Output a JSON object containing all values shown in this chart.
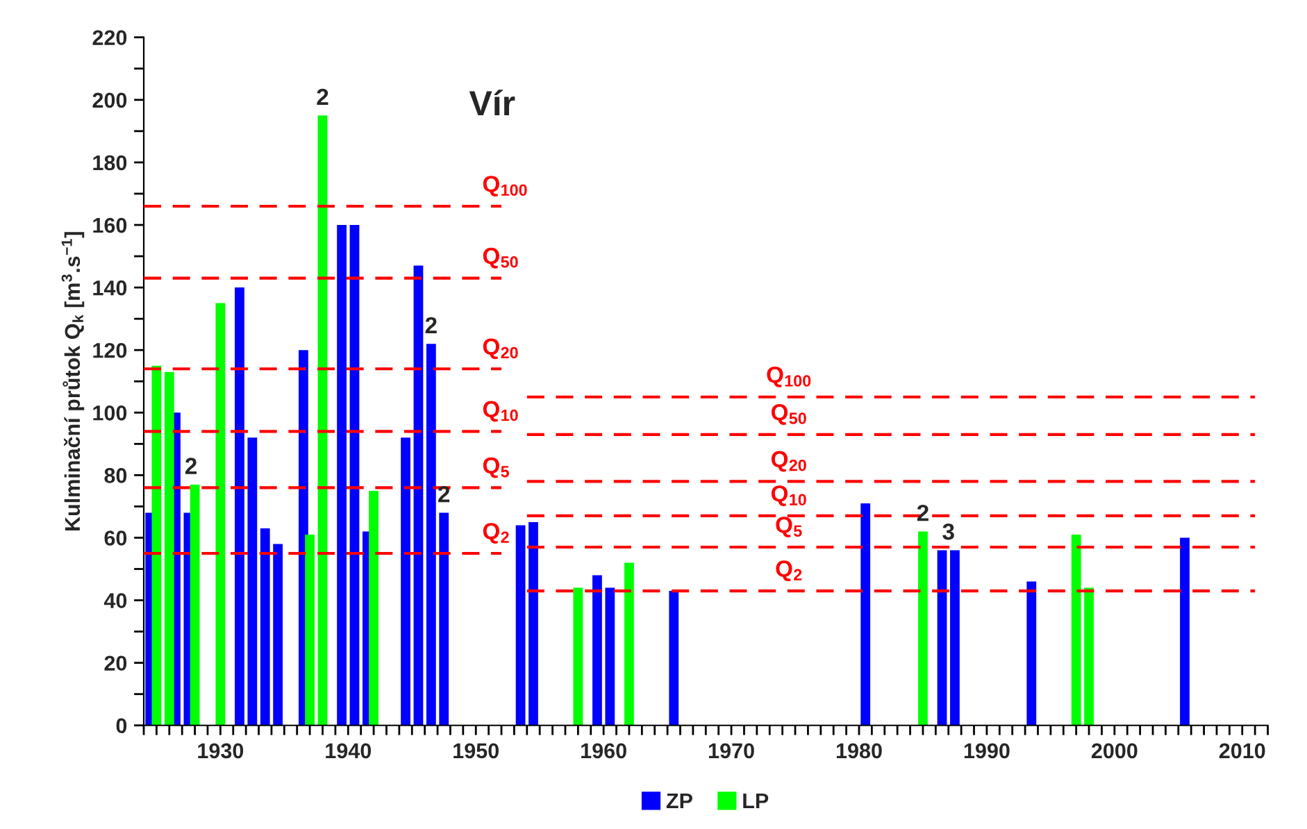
{
  "chart_data": {
    "type": "bar",
    "title": "Vír",
    "ylabel": "Kulminační průtok Q$_{k}$ [m$^{3}$.s$^{−1}$]",
    "xlim": [
      1924,
      2012
    ],
    "ylim": [
      0,
      220
    ],
    "xticks": [
      {
        "value": 1924,
        "label": null
      },
      {
        "value": 1925,
        "label": null
      },
      {
        "value": 1926,
        "label": null
      },
      {
        "value": 1927,
        "label": null
      },
      {
        "value": 1928,
        "label": null
      },
      {
        "value": 1929,
        "label": null
      },
      1930,
      {
        "value": 1931,
        "label": null
      },
      {
        "value": 1932,
        "label": null
      },
      {
        "value": 1933,
        "label": null
      },
      {
        "value": 1934,
        "label": null
      },
      {
        "value": 1935,
        "label": null
      },
      {
        "value": 1936,
        "label": null
      },
      {
        "value": 1937,
        "label": null
      },
      {
        "value": 1938,
        "label": null
      },
      {
        "value": 1939,
        "label": null
      },
      1940,
      {
        "value": 1941,
        "label": null
      },
      {
        "value": 1942,
        "label": null
      },
      {
        "value": 1943,
        "label": null
      },
      {
        "value": 1944,
        "label": null
      },
      {
        "value": 1945,
        "label": null
      },
      {
        "value": 1946,
        "label": null
      },
      {
        "value": 1947,
        "label": null
      },
      {
        "value": 1948,
        "label": null
      },
      {
        "value": 1949,
        "label": null
      },
      1950,
      {
        "value": 1951,
        "label": null
      },
      {
        "value": 1952,
        "label": null
      },
      {
        "value": 1953,
        "label": null
      },
      {
        "value": 1954,
        "label": null
      },
      {
        "value": 1955,
        "label": null
      },
      {
        "value": 1956,
        "label": null
      },
      {
        "value": 1957,
        "label": null
      },
      {
        "value": 1958,
        "label": null
      },
      {
        "value": 1959,
        "label": null
      },
      1960,
      {
        "value": 1961,
        "label": null
      },
      {
        "value": 1962,
        "label": null
      },
      {
        "value": 1963,
        "label": null
      },
      {
        "value": 1964,
        "label": null
      },
      {
        "value": 1965,
        "label": null
      },
      {
        "value": 1966,
        "label": null
      },
      {
        "value": 1967,
        "label": null
      },
      {
        "value": 1968,
        "label": null
      },
      {
        "value": 1969,
        "label": null
      },
      1970,
      {
        "value": 1971,
        "label": null
      },
      {
        "value": 1972,
        "label": null
      },
      {
        "value": 1973,
        "label": null
      },
      {
        "value": 1974,
        "label": null
      },
      {
        "value": 1975,
        "label": null
      },
      {
        "value": 1976,
        "label": null
      },
      {
        "value": 1977,
        "label": null
      },
      {
        "value": 1978,
        "label": null
      },
      {
        "value": 1979,
        "label": null
      },
      1980,
      {
        "value": 1981,
        "label": null
      },
      {
        "value": 1982,
        "label": null
      },
      {
        "value": 1983,
        "label": null
      },
      {
        "value": 1984,
        "label": null
      },
      {
        "value": 1985,
        "label": null
      },
      {
        "value": 1986,
        "label": null
      },
      {
        "value": 1987,
        "label": null
      },
      {
        "value": 1988,
        "label": null
      },
      {
        "value": 1989,
        "label": null
      },
      1990,
      {
        "value": 1991,
        "label": null
      },
      {
        "value": 1992,
        "label": null
      },
      {
        "value": 1993,
        "label": null
      },
      {
        "value": 1994,
        "label": null
      },
      {
        "value": 1995,
        "label": null
      },
      {
        "value": 1996,
        "label": null
      },
      {
        "value": 1997,
        "label": null
      },
      {
        "value": 1998,
        "label": null
      },
      {
        "value": 1999,
        "label": null
      },
      2000,
      {
        "value": 2001,
        "label": null
      },
      {
        "value": 2002,
        "label": null
      },
      {
        "value": 2003,
        "label": null
      },
      {
        "value": 2004,
        "label": null
      },
      {
        "value": 2005,
        "label": null
      },
      {
        "value": 2006,
        "label": null
      },
      {
        "value": 2007,
        "label": null
      },
      {
        "value": 2008,
        "label": null
      },
      {
        "value": 2009,
        "label": null
      },
      2010,
      {
        "value": 2011,
        "label": null
      },
      {
        "value": 2012,
        "label": null
      }
    ],
    "yticks": [
      0,
      {
        "value": 10,
        "label": null
      },
      20,
      {
        "value": 30,
        "label": null
      },
      40,
      {
        "value": 50,
        "label": null
      },
      60,
      {
        "value": 70,
        "label": null
      },
      80,
      {
        "value": 90,
        "label": null
      },
      100,
      {
        "value": 110,
        "label": null
      },
      120,
      {
        "value": 130,
        "label": null
      },
      140,
      {
        "value": 150,
        "label": null
      },
      160,
      {
        "value": 170,
        "label": null
      },
      180,
      {
        "value": 190,
        "label": null
      },
      200,
      {
        "value": 210,
        "label": null
      },
      220
    ],
    "grid": false,
    "legend": "bottom",
    "series": [
      {
        "name": "ZP",
        "color": "#0000ff",
        "x": [
          1924.5,
          1926.5,
          1927.5,
          1931.5,
          1932.5,
          1933.5,
          1934.5,
          1936.5,
          1939.5,
          1940.5,
          1941.5,
          1944.5,
          1945.5,
          1946.5,
          1947.5,
          1953.5,
          1954.5,
          1959.5,
          1960.5,
          1965.5,
          1980.5,
          1986.5,
          1987.5,
          1993.5,
          2005.5
        ],
        "values": [
          68,
          100,
          68,
          140,
          92,
          63,
          58,
          120,
          160,
          160,
          62,
          92,
          147,
          122,
          68,
          64,
          65,
          48,
          44,
          43,
          71,
          56,
          56,
          46,
          60
        ]
      },
      {
        "name": "LP",
        "color": "#00ff00",
        "x": [
          1925,
          1926,
          1928,
          1930,
          1937,
          1938,
          1942,
          1958,
          1962,
          1985,
          1997,
          1998
        ],
        "values": [
          115,
          113,
          77,
          135,
          61,
          195,
          75,
          44,
          52,
          62,
          61,
          44
        ]
      },
      {
        "name": "Q$_{100}$",
        "type": "line",
        "color": "#ff0000",
        "line_style": "dashed",
        "x": [
          1924,
          1952
        ],
        "values": [
          166,
          166
        ]
      },
      {
        "name": "Q$_{50}$",
        "type": "line",
        "color": "#ff0000",
        "line_style": "dashed",
        "x": [
          1924,
          1952
        ],
        "values": [
          143,
          143
        ]
      },
      {
        "name": "Q$_{20}$",
        "type": "line",
        "color": "#ff0000",
        "line_style": "dashed",
        "x": [
          1924,
          1952
        ],
        "values": [
          114,
          114
        ]
      },
      {
        "name": "Q$_{10}$",
        "type": "line",
        "color": "#ff0000",
        "line_style": "dashed",
        "x": [
          1924,
          1952
        ],
        "values": [
          94,
          94
        ]
      },
      {
        "name": "Q$_{5}$",
        "type": "line",
        "color": "#ff0000",
        "line_style": "dashed",
        "x": [
          1924,
          1952
        ],
        "values": [
          76,
          76
        ]
      },
      {
        "name": "Q$_{2}$",
        "type": "line",
        "color": "#ff0000",
        "line_style": "dashed",
        "x": [
          1924,
          1952
        ],
        "values": [
          55,
          55
        ]
      },
      {
        "name": "Q$_{100}$",
        "type": "line",
        "color": "#ff0000",
        "line_style": "dashed",
        "x": [
          1954,
          2011
        ],
        "values": [
          105,
          105
        ]
      },
      {
        "name": "Q$_{50}$",
        "type": "line",
        "color": "#ff0000",
        "line_style": "dashed",
        "x": [
          1954,
          2011
        ],
        "values": [
          93,
          93
        ]
      },
      {
        "name": "Q$_{20}$",
        "type": "line",
        "color": "#ff0000",
        "line_style": "dashed",
        "x": [
          1954,
          2011
        ],
        "values": [
          78,
          78
        ]
      },
      {
        "name": "Q$_{10}$",
        "type": "line",
        "color": "#ff0000",
        "line_style": "dashed",
        "x": [
          1954,
          2011
        ],
        "values": [
          67,
          67
        ]
      },
      {
        "name": "Q$_{5}$",
        "type": "line",
        "color": "#ff0000",
        "line_style": "dashed",
        "x": [
          1954,
          2011
        ],
        "values": [
          57,
          57
        ]
      },
      {
        "name": "Q$_{2}$",
        "type": "line",
        "color": "#ff0000",
        "line_style": "dashed",
        "x": [
          1954,
          2011
        ],
        "values": [
          43,
          43
        ]
      }
    ],
    "annotations": [
      {
        "text": "2",
        "x": 1927.7,
        "y": 77
      },
      {
        "text": "2",
        "x": 1938,
        "y": 195
      },
      {
        "text": "2",
        "x": 1946.5,
        "y": 122
      },
      {
        "text": "2",
        "x": 1947.5,
        "y": 68
      },
      {
        "text": "2",
        "x": 1985,
        "y": 62
      },
      {
        "text": "3",
        "x": 1987,
        "y": 56
      }
    ]
  }
}
